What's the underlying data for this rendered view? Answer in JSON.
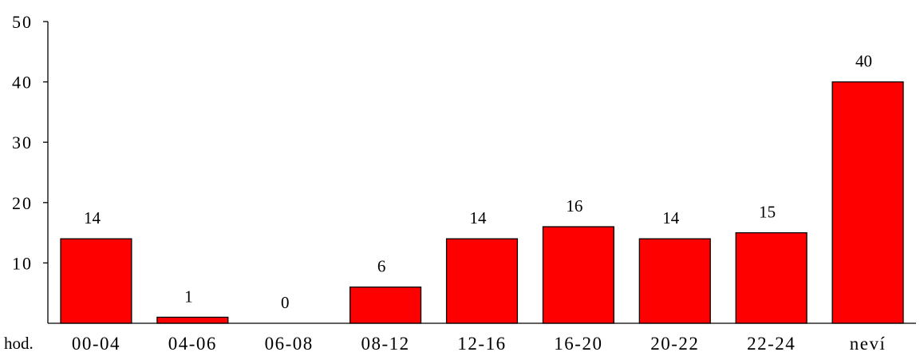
{
  "chart_data": {
    "type": "bar",
    "title": "",
    "xlabel": "hod.",
    "ylabel": "",
    "categories": [
      "00-04",
      "04-06",
      "06-08",
      "08-12",
      "12-16",
      "16-20",
      "20-22",
      "22-24",
      "neví"
    ],
    "values": [
      14,
      1,
      0,
      6,
      14,
      16,
      14,
      15,
      40
    ],
    "value_labels": [
      "14",
      "1",
      "0",
      "6",
      "14",
      "16",
      "14",
      "15",
      "40"
    ],
    "ylim": [
      0,
      50
    ],
    "yticks": [
      10,
      20,
      30,
      40,
      50
    ],
    "ytick_labels": [
      "10",
      "20",
      "30",
      "40",
      "50"
    ],
    "grid": false,
    "legend": "none",
    "bar_color": "#ff0000",
    "bar_edge_color": "#000000"
  }
}
